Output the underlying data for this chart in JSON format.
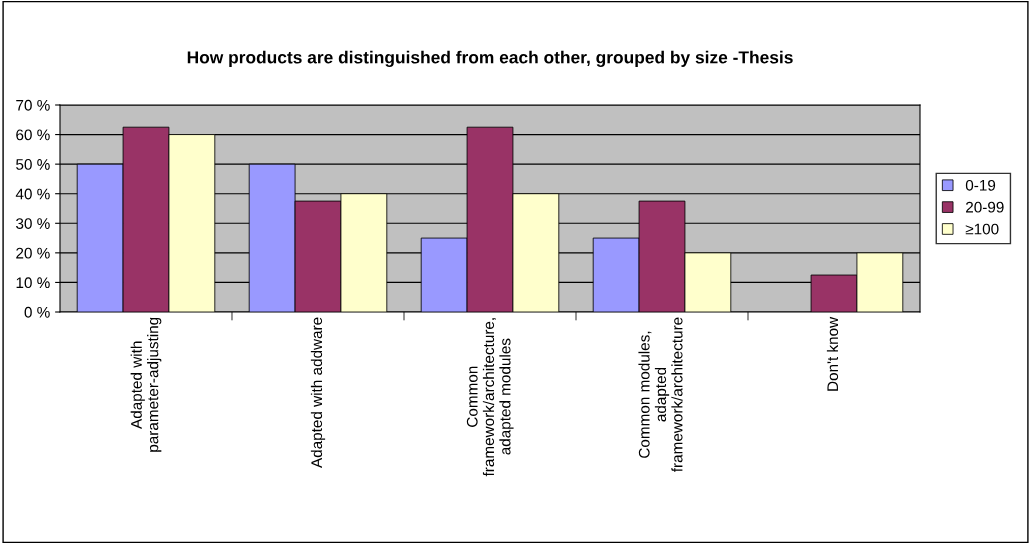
{
  "chart_data": {
    "type": "bar",
    "title": "How products are distinguished from each other, grouped by size -Thesis",
    "categories": [
      "Adapted with\nparameter-adjusting",
      "Adapted with addware",
      "Common\nframework/architecture,\nadapted modules",
      "Common modules,\nadapted\nframework/architecture",
      "Don't know"
    ],
    "series": [
      {
        "name": "0-19",
        "color": "#9999ff",
        "values": [
          50,
          50,
          25,
          25,
          null
        ]
      },
      {
        "name": "20-99",
        "color": "#993366",
        "values": [
          62.5,
          37.5,
          62.5,
          37.5,
          12.5
        ]
      },
      {
        "name": "≥100",
        "color": "#ffffcc",
        "values": [
          60,
          40,
          40,
          20,
          20
        ]
      }
    ],
    "ylim": [
      0,
      70
    ],
    "yticks": [
      {
        "value": 0,
        "label": "0 %"
      },
      {
        "value": 10,
        "label": "10 %"
      },
      {
        "value": 20,
        "label": "20 %"
      },
      {
        "value": 30,
        "label": "30 %"
      },
      {
        "value": 40,
        "label": "40 %"
      },
      {
        "value": 50,
        "label": "50 %"
      },
      {
        "value": 60,
        "label": "60 %"
      },
      {
        "value": 70,
        "label": "70 %"
      }
    ],
    "grid": "y",
    "legend": "right"
  }
}
